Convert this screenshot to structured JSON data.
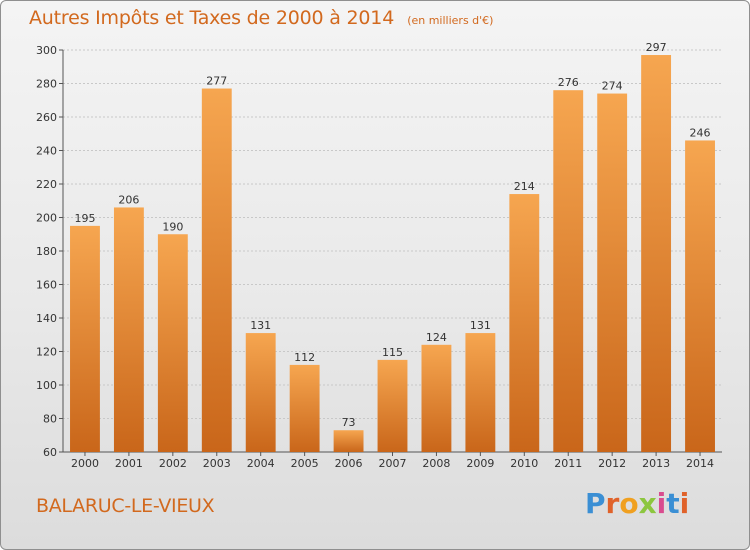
{
  "header": {
    "title": "Autres Impôts et Taxes de 2000 à 2014",
    "subtitle": "(en milliers d'€)"
  },
  "footer": {
    "commune": "BALARUC-LE-VIEUX",
    "logo_letters": [
      "P",
      "r",
      "o",
      "x",
      "i",
      "t",
      "i"
    ],
    "logo_colors": [
      "#3b8fd4",
      "#e0622a",
      "#f0a020",
      "#8cc63f",
      "#d94c8f",
      "#3b8fd4",
      "#e0622a"
    ]
  },
  "colors": {
    "bar_top": "#f6a650",
    "bar_bottom": "#c9661a",
    "grid": "#c8c8c8",
    "axis": "#555555",
    "title": "#d2691e"
  },
  "chart_data": {
    "type": "bar",
    "title": "Autres Impôts et Taxes de 2000 à 2014",
    "subtitle": "(en milliers d'€)",
    "xlabel": "",
    "ylabel": "",
    "categories": [
      "2000",
      "2001",
      "2002",
      "2003",
      "2004",
      "2005",
      "2006",
      "2007",
      "2008",
      "2009",
      "2010",
      "2011",
      "2012",
      "2013",
      "2014"
    ],
    "values": [
      195,
      206,
      190,
      277,
      131,
      112,
      73,
      115,
      124,
      131,
      214,
      276,
      274,
      297,
      246
    ],
    "ylim": [
      60,
      300
    ],
    "yticks": [
      60,
      80,
      100,
      120,
      140,
      160,
      180,
      200,
      220,
      240,
      260,
      280,
      300
    ],
    "grid": true,
    "data_labels": true
  }
}
